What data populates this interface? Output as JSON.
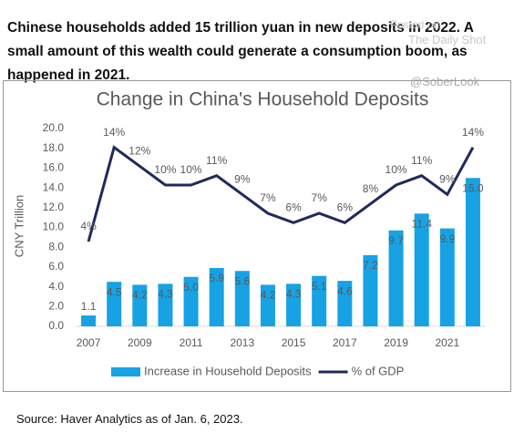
{
  "header_text": "Chinese households added 15 trillion yuan in new deposits in 2022. A small amount of this wealth could generate a consumption boom, as happened in 2021.",
  "watermark": [
    "Posted on",
    "The Daily Shot",
    "@SoberLook"
  ],
  "source": "Source: Haver Analytics as of Jan. 6, 2023.",
  "chart_data": {
    "type": "bar",
    "title": "Change in China's Household Deposits",
    "y_label": "CNY Trillion",
    "categories": [
      "2007",
      null,
      "2009",
      null,
      "2011",
      null,
      "2013",
      null,
      "2015",
      null,
      "2017",
      null,
      "2019",
      null,
      "2021",
      null
    ],
    "series": [
      {
        "name": "Increase in Household Deposits",
        "type": "bar",
        "color": "#17a2e4",
        "values": [
          1.1,
          4.5,
          4.2,
          4.3,
          5.0,
          5.9,
          5.6,
          4.2,
          4.3,
          5.1,
          4.6,
          7.2,
          9.7,
          11.4,
          9.9,
          15.0
        ],
        "value_labels": [
          "1.1",
          "4.5",
          "4.2",
          "4.3",
          "5.0",
          "5.9",
          "5.6",
          "4.2",
          "4.3",
          "5.1",
          "4.6",
          "7.2",
          "9.7",
          "11.4",
          "9.9",
          "15.0"
        ]
      },
      {
        "name": "% of GDP",
        "type": "line",
        "axis": "y2",
        "color": "#1f2a5c",
        "values": [
          4,
          14,
          12,
          10,
          10,
          11,
          9,
          7,
          6,
          7,
          6,
          8,
          10,
          11,
          9,
          14
        ],
        "value_labels": [
          "4%",
          "14%",
          "12%",
          "10%",
          "10%",
          "11%",
          "9%",
          "7%",
          "6%",
          "7%",
          "6%",
          "8%",
          "10%",
          "11%",
          "9%",
          "14%"
        ]
      }
    ],
    "ylim": [
      0,
      20
    ],
    "yticks": [
      {
        "value": 0,
        "label": "0.0"
      },
      {
        "value": 2,
        "label": "2.0"
      },
      {
        "value": 4,
        "label": "4.0"
      },
      {
        "value": 6,
        "label": "6.0"
      },
      {
        "value": 8,
        "label": "8.0"
      },
      {
        "value": 10,
        "label": "10.0"
      },
      {
        "value": 12,
        "label": "12.0"
      },
      {
        "value": 14,
        "label": "14.0"
      },
      {
        "value": 16,
        "label": "16.0"
      },
      {
        "value": 18,
        "label": "18.0"
      },
      {
        "value": 20,
        "label": "20.0"
      }
    ],
    "y2lim": [
      -5,
      16
    ],
    "legend": "bottom"
  }
}
